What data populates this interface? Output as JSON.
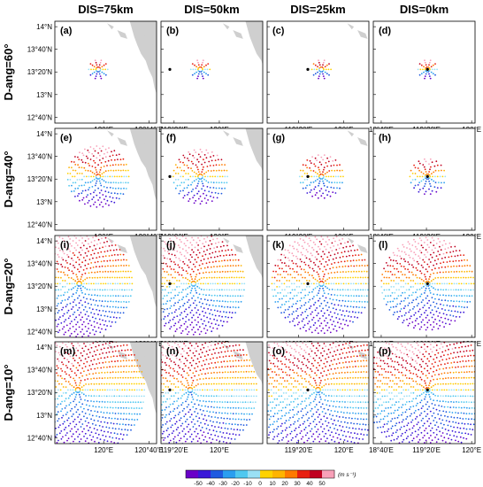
{
  "chart_data": {
    "type": "scatter",
    "columns": [
      "DIS=75km",
      "DIS=50km",
      "DIS=25km",
      "DIS=0km"
    ],
    "rows": [
      "D-ang=60°",
      "D-ang=40°",
      "D-ang=20°",
      "D-ang=10°"
    ],
    "panel_labels": [
      "(a)",
      "(b)",
      "(c)",
      "(d)",
      "(e)",
      "(f)",
      "(g)",
      "(h)",
      "(i)",
      "(j)",
      "(k)",
      "(l)",
      "(m)",
      "(n)",
      "(o)",
      "(p)"
    ],
    "y_ticks": [
      "14°N",
      "13°40'N",
      "13°20'N",
      "13°N",
      "12°40'N"
    ],
    "x_ticks_by_column": [
      [
        "120°E",
        "120°40'E"
      ],
      [
        "119°20'E",
        "120°E"
      ],
      [
        "119°20'E",
        "120°E"
      ],
      [
        "18°40'E",
        "119°20'E",
        "120°E"
      ]
    ],
    "colorbar": {
      "ticks": [
        "-50",
        "-40",
        "-30",
        "-20",
        "-10",
        "0",
        "10",
        "20",
        "30",
        "40",
        "50"
      ],
      "unit": "(m s⁻¹)",
      "colors": [
        "#6a00c8",
        "#3a18d8",
        "#1f5ae0",
        "#2a9ef0",
        "#50c8f0",
        "#9ae0f5",
        "#ffd200",
        "#ffb400",
        "#ff7a00",
        "#e82010",
        "#c00020",
        "#f8a0b8"
      ]
    },
    "radar_lat": 13.37,
    "panels_radius_deg": [
      [
        0.14,
        0.14,
        0.14,
        0.14
      ],
      [
        0.45,
        0.4,
        0.32,
        0.26
      ],
      [
        0.78,
        0.75,
        0.73,
        0.68
      ],
      [
        0.98,
        0.98,
        0.98,
        0.92
      ]
    ]
  }
}
